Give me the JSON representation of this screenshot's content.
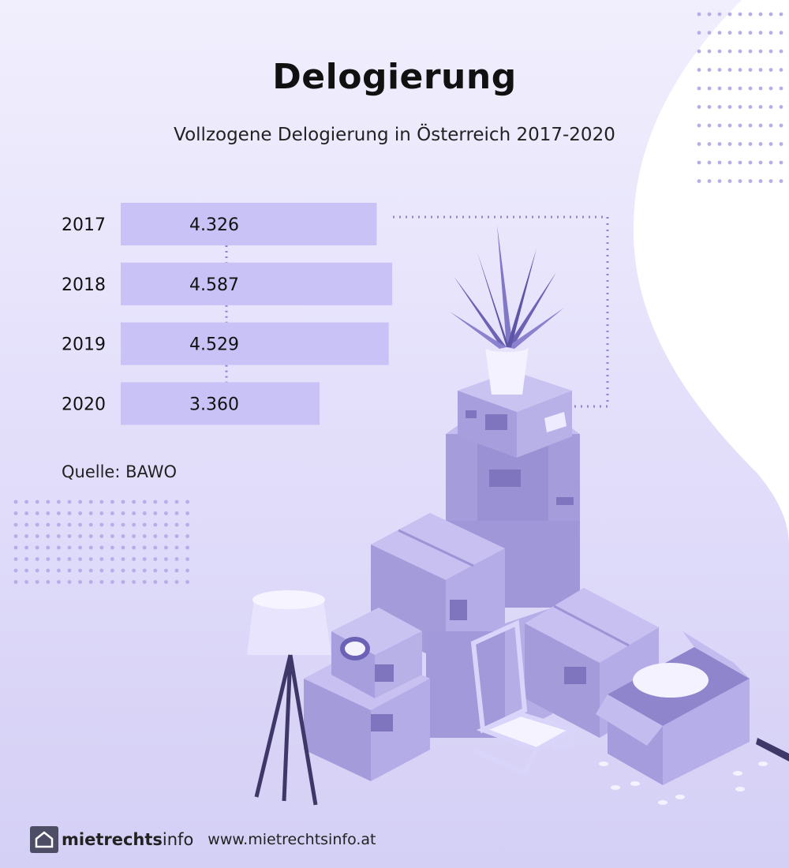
{
  "chart_data": {
    "type": "bar",
    "orientation": "horizontal",
    "title": "Delogierung",
    "subtitle": "Vollzogene Delogierung in Österreich 2017-2020",
    "categories": [
      "2017",
      "2018",
      "2019",
      "2020"
    ],
    "values": [
      4326,
      4587,
      4529,
      3360
    ],
    "value_labels": [
      "4.326",
      "4.587",
      "4.529",
      "3.360"
    ],
    "grid": false,
    "source": "Quelle: BAWO"
  },
  "colors": {
    "bar": "#c8c2f7",
    "accent": "#8f84cf",
    "dots": "#b6aee8"
  },
  "footer": {
    "logo_bold": "mietrechts",
    "logo_light": "info",
    "url": "www.mietrechtsinfo.at"
  }
}
